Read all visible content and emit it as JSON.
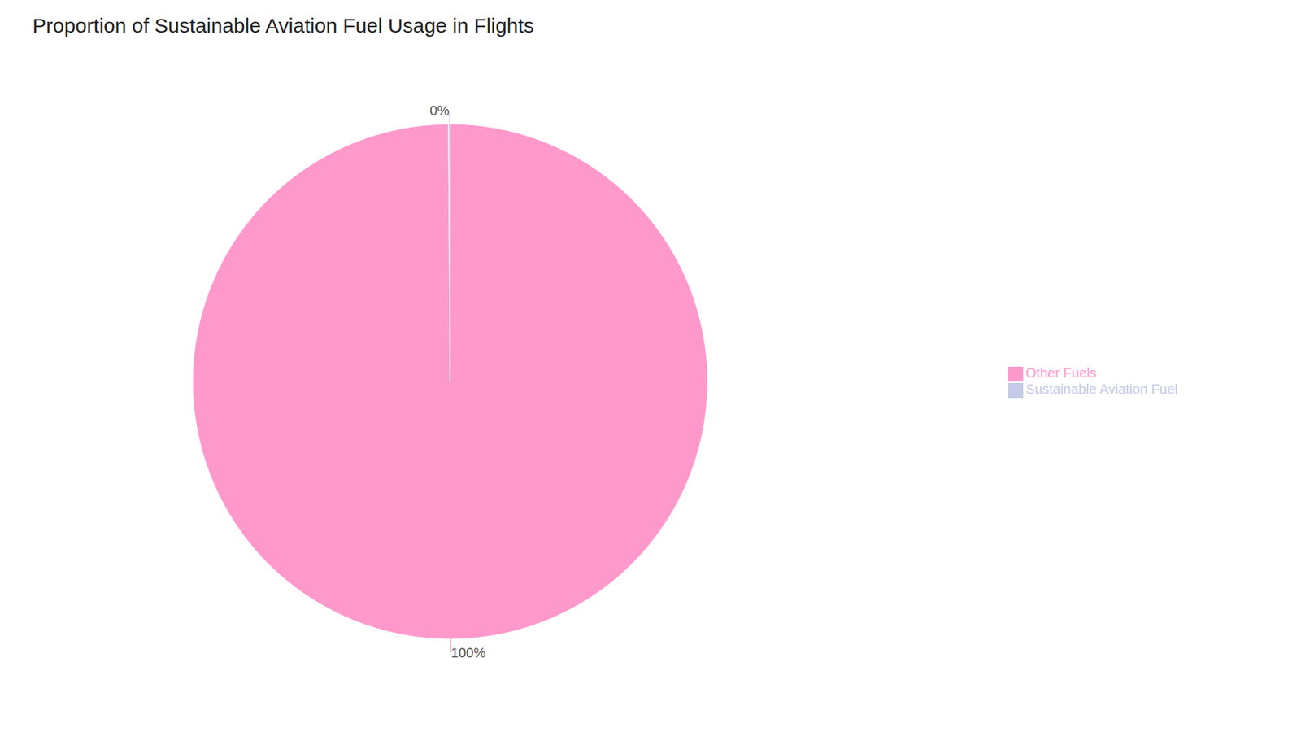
{
  "chart_data": {
    "type": "pie",
    "title": "Proportion of Sustainable Aviation Fuel Usage in Flights",
    "categories": [
      "Other Fuels",
      "Sustainable Aviation Fuel"
    ],
    "values": [
      99.9,
      0.1
    ],
    "value_labels": [
      "100%",
      "0%"
    ],
    "colors": [
      "#FF99CC",
      "#C5CAE9"
    ],
    "data_labels": true,
    "legend": "right"
  }
}
